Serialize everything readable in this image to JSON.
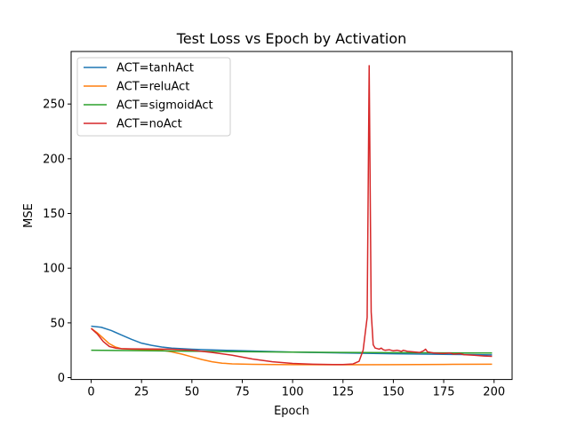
{
  "chart_data": {
    "type": "line",
    "title": "Test Loss vs Epoch by Activation",
    "xlabel": "Epoch",
    "ylabel": "MSE",
    "xlim": [
      -9.95,
      208.95
    ],
    "ylim": [
      -1.7,
      298
    ],
    "xticks": [
      0,
      25,
      50,
      75,
      100,
      125,
      150,
      175,
      200
    ],
    "yticks": [
      0,
      50,
      100,
      150,
      200,
      250
    ],
    "grid": false,
    "legend_position": "upper-left",
    "series": [
      {
        "name": "ACT=tanhAct",
        "color": "#1f77b4",
        "points": [
          [
            0,
            47
          ],
          [
            5,
            46
          ],
          [
            10,
            43
          ],
          [
            15,
            39
          ],
          [
            20,
            35
          ],
          [
            25,
            31.5
          ],
          [
            30,
            29.5
          ],
          [
            35,
            28
          ],
          [
            40,
            27
          ],
          [
            50,
            26
          ],
          [
            60,
            25.3
          ],
          [
            70,
            24.8
          ],
          [
            80,
            24.3
          ],
          [
            90,
            23.8
          ],
          [
            100,
            23.3
          ],
          [
            110,
            23
          ],
          [
            120,
            22.7
          ],
          [
            130,
            22.4
          ],
          [
            140,
            22.1
          ],
          [
            150,
            21.8
          ],
          [
            160,
            21.6
          ],
          [
            170,
            21.4
          ],
          [
            180,
            21.2
          ],
          [
            190,
            21
          ],
          [
            199,
            20.8
          ]
        ]
      },
      {
        "name": "ACT=reluAct",
        "color": "#ff7f0e",
        "points": [
          [
            0,
            45
          ],
          [
            3,
            41
          ],
          [
            6,
            36
          ],
          [
            9,
            31
          ],
          [
            12,
            28
          ],
          [
            15,
            26.5
          ],
          [
            20,
            26
          ],
          [
            30,
            25.5
          ],
          [
            35,
            25
          ],
          [
            40,
            23.5
          ],
          [
            45,
            21.5
          ],
          [
            50,
            19
          ],
          [
            55,
            16.5
          ],
          [
            60,
            14.5
          ],
          [
            65,
            13.2
          ],
          [
            70,
            12.6
          ],
          [
            80,
            12.2
          ],
          [
            90,
            12
          ],
          [
            100,
            11.9
          ],
          [
            125,
            11.8
          ],
          [
            150,
            11.9
          ],
          [
            175,
            12.1
          ],
          [
            199,
            12.3
          ]
        ]
      },
      {
        "name": "ACT=sigmoidAct",
        "color": "#2ca02c",
        "points": [
          [
            0,
            25
          ],
          [
            25,
            24.6
          ],
          [
            50,
            24.1
          ],
          [
            75,
            23.7
          ],
          [
            100,
            23.3
          ],
          [
            125,
            23
          ],
          [
            150,
            22.8
          ],
          [
            175,
            22.6
          ],
          [
            199,
            22.5
          ]
        ]
      },
      {
        "name": "ACT=noAct",
        "color": "#d62728",
        "points": [
          [
            0,
            45
          ],
          [
            3,
            40
          ],
          [
            6,
            33
          ],
          [
            9,
            28.5
          ],
          [
            12,
            27
          ],
          [
            15,
            26.5
          ],
          [
            20,
            26.3
          ],
          [
            30,
            26.2
          ],
          [
            40,
            26
          ],
          [
            50,
            25
          ],
          [
            60,
            23
          ],
          [
            70,
            20.5
          ],
          [
            80,
            17
          ],
          [
            90,
            14.5
          ],
          [
            100,
            13
          ],
          [
            110,
            12.3
          ],
          [
            120,
            12
          ],
          [
            125,
            12
          ],
          [
            130,
            12.5
          ],
          [
            133,
            15
          ],
          [
            135,
            25
          ],
          [
            136,
            40
          ],
          [
            137,
            55
          ],
          [
            138,
            285
          ],
          [
            139,
            60
          ],
          [
            140,
            30
          ],
          [
            141,
            27
          ],
          [
            142,
            26.5
          ],
          [
            143,
            26
          ],
          [
            144,
            27
          ],
          [
            145,
            25.5
          ],
          [
            146,
            25
          ],
          [
            148,
            25.5
          ],
          [
            150,
            24.5
          ],
          [
            152,
            25
          ],
          [
            154,
            24
          ],
          [
            155,
            25
          ],
          [
            157,
            24
          ],
          [
            160,
            23.5
          ],
          [
            163,
            23
          ],
          [
            165,
            24.5
          ],
          [
            166,
            26
          ],
          [
            167,
            23.5
          ],
          [
            170,
            22.5
          ],
          [
            175,
            22
          ],
          [
            178,
            22.5
          ],
          [
            180,
            21.5
          ],
          [
            183,
            22
          ],
          [
            185,
            21
          ],
          [
            190,
            20.5
          ],
          [
            195,
            19.8
          ],
          [
            199,
            19.5
          ]
        ]
      }
    ]
  }
}
